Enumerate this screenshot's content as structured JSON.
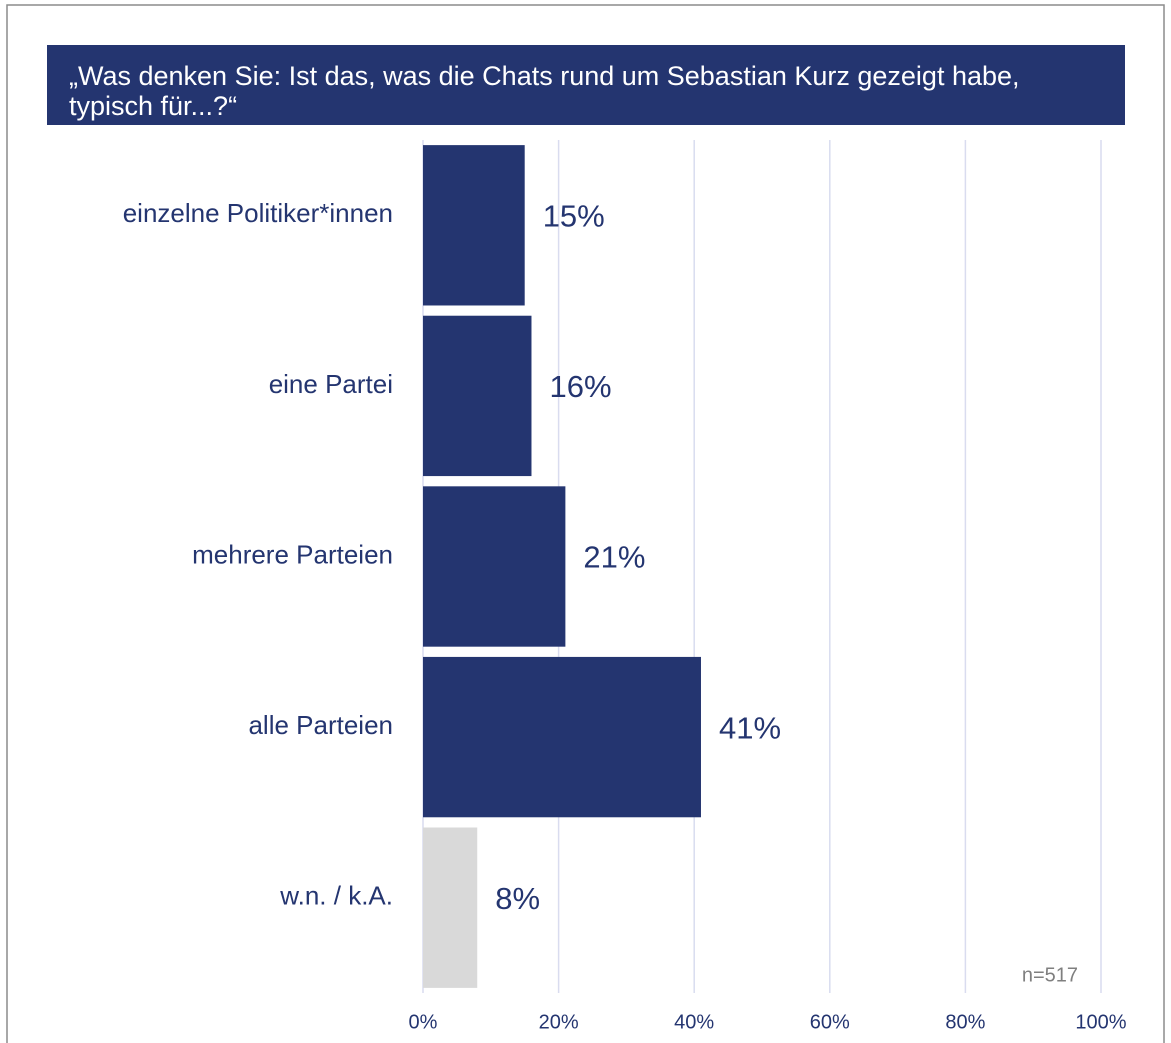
{
  "chart_data": {
    "type": "hbar",
    "title": "„Was denken Sie: Ist das, was die Chats rund um Sebastian Kurz gezeigt habe, typisch für...?“",
    "categories": [
      "einzelne Politiker*innen",
      "eine Partei",
      "mehrere Parteien",
      "alle Parteien",
      "w.n. / k.A."
    ],
    "values": [
      15,
      16,
      21,
      41,
      8
    ],
    "value_labels": [
      "15%",
      "16%",
      "21%",
      "41%",
      "8%"
    ],
    "colors": [
      "#243570",
      "#243570",
      "#243570",
      "#243570",
      "#d9d9d9"
    ],
    "xlim": [
      0,
      100
    ],
    "xticks": [
      {
        "value": 0,
        "label": "0%"
      },
      {
        "value": 20,
        "label": "20%"
      },
      {
        "value": 40,
        "label": "40%"
      },
      {
        "value": 60,
        "label": "60%"
      },
      {
        "value": 80,
        "label": "80%"
      },
      {
        "value": 100,
        "label": "100%"
      }
    ],
    "grid": true,
    "annotations": [
      "n=517"
    ]
  }
}
